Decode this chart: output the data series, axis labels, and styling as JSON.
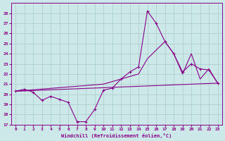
{
  "xlabel": "Windchill (Refroidissement éolien,°C)",
  "xlim": [
    -0.5,
    23.5
  ],
  "ylim": [
    17,
    29
  ],
  "yticks": [
    17,
    18,
    19,
    20,
    21,
    22,
    23,
    24,
    25,
    26,
    27,
    28
  ],
  "xticks": [
    0,
    1,
    2,
    3,
    4,
    5,
    6,
    7,
    8,
    9,
    10,
    11,
    12,
    13,
    14,
    15,
    16,
    17,
    18,
    19,
    20,
    21,
    22,
    23
  ],
  "bg_color": "#cce8e8",
  "grid_color": "#aacccc",
  "line_color": "#880088",
  "jagged": {
    "x": [
      0,
      1,
      2,
      3,
      4,
      5,
      6,
      7,
      8,
      9,
      10,
      11,
      12,
      13,
      14,
      15,
      16,
      17,
      18,
      19,
      20,
      21,
      22,
      23
    ],
    "y": [
      20.3,
      20.5,
      20.2,
      19.4,
      19.8,
      19.5,
      19.2,
      17.3,
      17.3,
      18.5,
      20.4,
      20.6,
      21.5,
      22.2,
      22.7,
      28.2,
      27.0,
      25.2,
      24.0,
      22.2,
      23.0,
      22.5,
      22.4,
      21.1
    ]
  },
  "diagonal": {
    "x": [
      0,
      10,
      14,
      15,
      17,
      18,
      19,
      20,
      21,
      22,
      23
    ],
    "y": [
      20.3,
      21.0,
      22.0,
      23.5,
      25.2,
      24.0,
      22.0,
      24.0,
      21.5,
      22.5,
      21.1
    ]
  },
  "flat": {
    "x": [
      0,
      23
    ],
    "y": [
      20.3,
      21.1
    ]
  }
}
